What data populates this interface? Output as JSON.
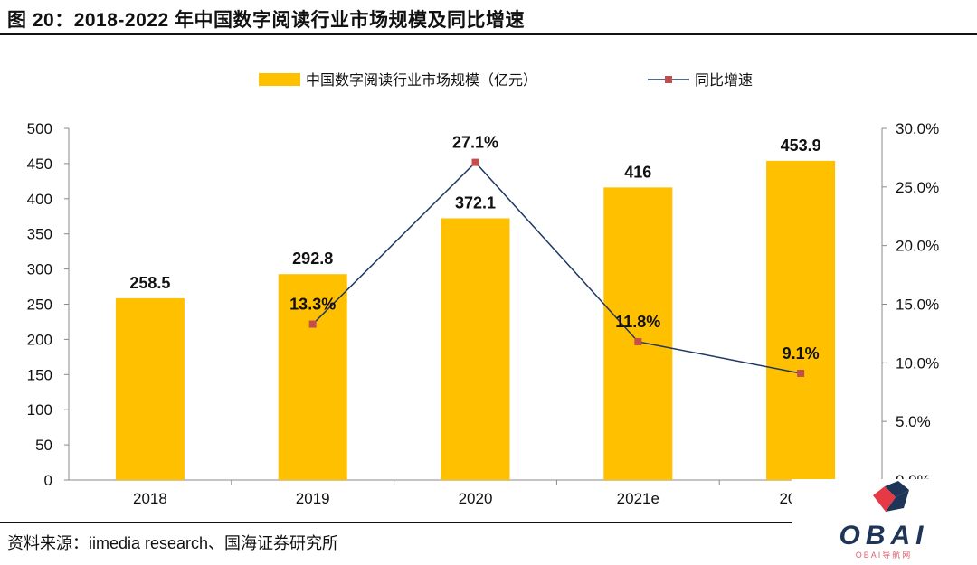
{
  "title": "图 20：2018-2022 年中国数字阅读行业市场规模及同比增速",
  "source": "资料来源：iimedia research、国海证券研究所",
  "logo": {
    "text": "OBAI",
    "subtext": "OBAI导航网"
  },
  "chart_data": {
    "type": "bar+line",
    "categories": [
      "2018",
      "2019",
      "2020",
      "2021e",
      "2022e"
    ],
    "series": [
      {
        "name": "中国数字阅读行业市场规模（亿元）",
        "type": "bar",
        "axis": "left",
        "color": "#FFC000",
        "values": [
          258.5,
          292.8,
          372.1,
          416,
          453.9
        ],
        "labels": [
          "258.5",
          "292.8",
          "372.1",
          "416",
          "453.9"
        ]
      },
      {
        "name": "同比增速",
        "type": "line",
        "axis": "right",
        "color": "#1F3864",
        "marker_color": "#C0504D",
        "values": [
          null,
          13.3,
          27.1,
          11.8,
          9.1
        ],
        "labels": [
          "",
          "13.3%",
          "27.1%",
          "11.8%",
          "9.1%"
        ]
      }
    ],
    "y_left": {
      "lim": [
        0,
        500
      ],
      "ticks": [
        "0",
        "50",
        "100",
        "150",
        "200",
        "250",
        "300",
        "350",
        "400",
        "450",
        "500"
      ]
    },
    "y_right": {
      "lim": [
        0,
        30
      ],
      "ticks": [
        "0.0%",
        "5.0%",
        "10.0%",
        "15.0%",
        "20.0%",
        "25.0%",
        "30.0%"
      ]
    },
    "legend": "top-center",
    "grid": false
  }
}
